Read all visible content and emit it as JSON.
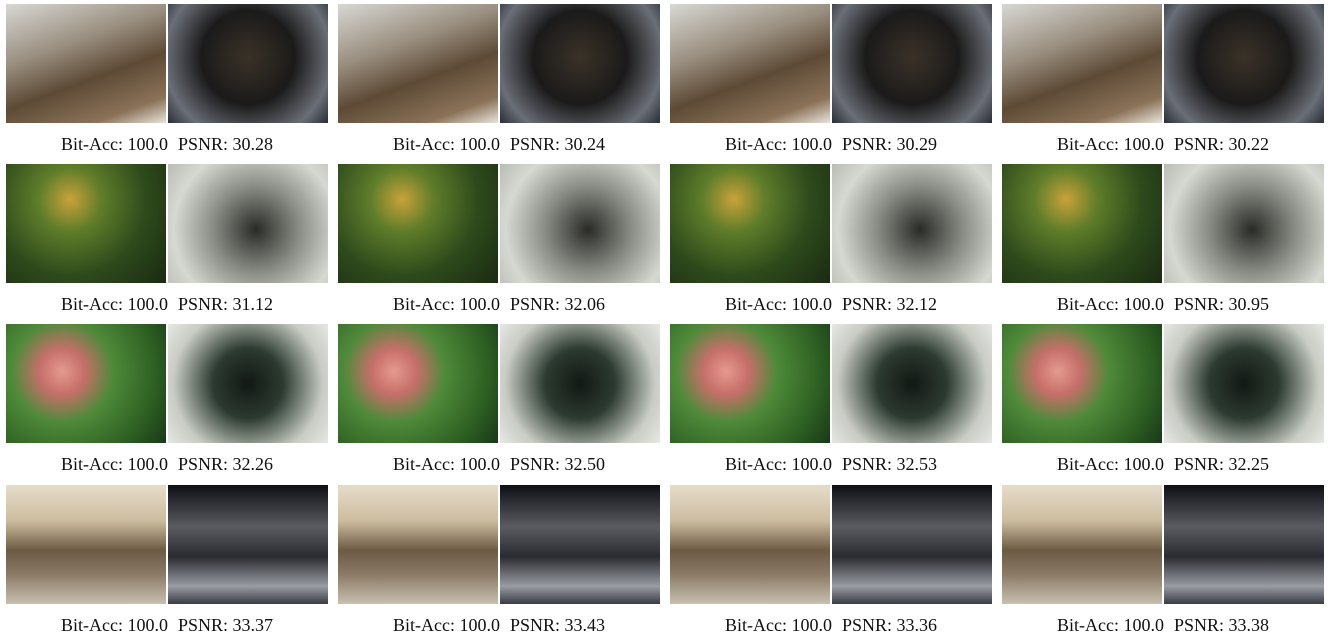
{
  "figure": {
    "rows": [
      {
        "cells": [
          {
            "bit_acc": "Bit-Acc: 100.0",
            "psnr": "PSNR: 30.28"
          },
          {
            "bit_acc": "Bit-Acc: 100.0",
            "psnr": "PSNR: 30.24"
          },
          {
            "bit_acc": "Bit-Acc: 100.0",
            "psnr": "PSNR: 30.29"
          },
          {
            "bit_acc": "Bit-Acc: 100.0",
            "psnr": "PSNR: 30.22"
          }
        ]
      },
      {
        "cells": [
          {
            "bit_acc": "Bit-Acc: 100.0",
            "psnr": "PSNR: 31.12"
          },
          {
            "bit_acc": "Bit-Acc: 100.0",
            "psnr": "PSNR: 32.06"
          },
          {
            "bit_acc": "Bit-Acc: 100.0",
            "psnr": "PSNR: 32.12"
          },
          {
            "bit_acc": "Bit-Acc: 100.0",
            "psnr": "PSNR: 30.95"
          }
        ]
      },
      {
        "cells": [
          {
            "bit_acc": "Bit-Acc: 100.0",
            "psnr": "PSNR: 32.26"
          },
          {
            "bit_acc": "Bit-Acc: 100.0",
            "psnr": "PSNR: 32.50"
          },
          {
            "bit_acc": "Bit-Acc: 100.0",
            "psnr": "PSNR: 32.53"
          },
          {
            "bit_acc": "Bit-Acc: 100.0",
            "psnr": "PSNR: 32.25"
          }
        ]
      },
      {
        "cells": [
          {
            "bit_acc": "Bit-Acc: 100.0",
            "psnr": "PSNR: 33.37"
          },
          {
            "bit_acc": "Bit-Acc: 100.0",
            "psnr": "PSNR: 33.43"
          },
          {
            "bit_acc": "Bit-Acc: 100.0",
            "psnr": "PSNR: 33.36"
          },
          {
            "bit_acc": "Bit-Acc: 100.0",
            "psnr": "PSNR: 33.38"
          }
        ]
      }
    ]
  }
}
